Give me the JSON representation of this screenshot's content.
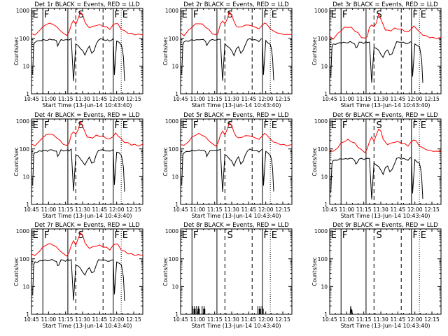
{
  "chart_data": [
    {
      "type": "line",
      "title": "Det 1r BLACK = Events, RED = LLD",
      "xlabel": "Start Time (13-Jun-14 10:43:40)",
      "ylabel": "Counts/sec",
      "has_events": true,
      "events_scale": 1.0,
      "lld_scale": 1.0,
      "spike": false
    },
    {
      "type": "line",
      "title": "Det 2r BLACK = Events, RED = LLD",
      "xlabel": "Start Time (13-Jun-14 10:43:40)",
      "ylabel": "Counts/sec",
      "has_events": true,
      "events_scale": 1.0,
      "lld_scale": 1.0,
      "spike": false
    },
    {
      "type": "line",
      "title": "Det 3r BLACK = Events, RED = LLD",
      "xlabel": "Start Time (13-Jun-14 10:43:40)",
      "ylabel": "Counts/sec",
      "has_events": true,
      "events_scale": 0.8,
      "lld_scale": 0.75,
      "spike": false
    },
    {
      "type": "line",
      "title": "Det 4r BLACK = Events, RED = LLD",
      "xlabel": "Start Time (13-Jun-14 10:43:40)",
      "ylabel": "Counts/sec",
      "has_events": true,
      "events_scale": 1.0,
      "lld_scale": 1.0,
      "spike": false
    },
    {
      "type": "line",
      "title": "Det 5r BLACK = Events, RED = LLD",
      "xlabel": "Start Time (13-Jun-14 10:43:40)",
      "ylabel": "Counts/sec",
      "has_events": true,
      "events_scale": 1.0,
      "lld_scale": 1.0,
      "spike": false
    },
    {
      "type": "line",
      "title": "Det 6r BLACK = Events, RED = LLD",
      "xlabel": "Start Time (13-Jun-14 10:43:40)",
      "ylabel": "Counts/sec",
      "has_events": true,
      "events_scale": 0.5,
      "lld_scale": 0.6,
      "spike": false
    },
    {
      "type": "line",
      "title": "Det 7r BLACK = Events, RED = LLD",
      "xlabel": "Start Time (13-Jun-14 10:43:40)",
      "ylabel": "Counts/sec",
      "has_events": true,
      "events_scale": 1.0,
      "lld_scale": 1.0,
      "spike": false
    },
    {
      "type": "line",
      "title": "Det 8r BLACK = Events, RED = LLD",
      "xlabel": "Start Time (13-Jun-14 10:43:40)",
      "ylabel": "Counts/sec",
      "has_events": false,
      "events_scale": 1.0,
      "lld_scale": 1.0,
      "spike": false
    },
    {
      "type": "line",
      "title": "Det 9r BLACK = Events, RED = LLD",
      "xlabel": "Start Time (13-Jun-14 10:43:40)",
      "ylabel": "Counts/sec",
      "has_events": false,
      "events_scale": 1.0,
      "lld_scale": 1.0,
      "spike": true
    }
  ],
  "shared": {
    "x_ticks": [
      "10:45",
      "11:00",
      "11:15",
      "11:30",
      "11:45",
      "12:00",
      "12:15"
    ],
    "x_tick_minutes": [
      45,
      60,
      75,
      90,
      105,
      120,
      135
    ],
    "x_range_minutes": [
      45,
      143
    ],
    "y_ticks": [
      "1",
      "10",
      "100",
      "1000"
    ],
    "y_tick_values": [
      1,
      10,
      100,
      1000
    ],
    "y_range": [
      1,
      1200
    ],
    "y_scale": "log",
    "region_labels": [
      {
        "text": "E",
        "at": 46
      },
      {
        "text": "F",
        "at": 56
      },
      {
        "text": "S",
        "at": 86
      },
      {
        "text": "F",
        "at": 118
      },
      {
        "text": "E",
        "at": 125
      }
    ],
    "boundaries": [
      {
        "at": 55,
        "style": "solid"
      },
      {
        "at": 77,
        "style": "solid"
      },
      {
        "at": 84,
        "style": "dashed"
      },
      {
        "at": 108,
        "style": "dashed"
      },
      {
        "at": 117,
        "style": "solid"
      },
      {
        "at": 124,
        "style": "dotted"
      }
    ],
    "lld_series": {
      "x": [
        45,
        48,
        52,
        55,
        58,
        61,
        64,
        67,
        70,
        73,
        76,
        78,
        80,
        82,
        84,
        86,
        88,
        90,
        92,
        94,
        96,
        99,
        102,
        105,
        108,
        111,
        114,
        117,
        119,
        121,
        124,
        127,
        130,
        133,
        136,
        139,
        143
      ],
      "y": [
        150,
        130,
        190,
        260,
        320,
        350,
        320,
        260,
        200,
        150,
        130,
        160,
        320,
        430,
        330,
        500,
        900,
        700,
        400,
        280,
        250,
        260,
        300,
        300,
        280,
        250,
        220,
        300,
        360,
        320,
        220,
        180,
        160,
        145,
        140,
        135,
        140
      ]
    },
    "events_series": {
      "x": [
        46,
        47,
        48,
        50,
        52,
        54,
        55,
        57,
        59,
        61,
        63,
        65,
        67,
        68,
        69,
        71,
        73,
        75,
        77,
        78,
        80,
        82,
        84,
        86,
        88,
        90,
        92,
        94,
        96,
        98,
        100,
        102,
        104,
        106,
        108,
        110,
        112,
        114,
        116,
        117,
        118,
        120,
        122,
        124,
        125,
        126,
        127
      ],
      "y": [
        5,
        60,
        75,
        78,
        82,
        85,
        88,
        88,
        86,
        90,
        92,
        88,
        80,
        55,
        62,
        90,
        88,
        85,
        92,
        88,
        95,
        3,
        60,
        55,
        45,
        35,
        25,
        40,
        50,
        30,
        35,
        60,
        90,
        95,
        90,
        88,
        85,
        80,
        92,
        95,
        5,
        80,
        70,
        60,
        40,
        20,
        3
      ]
    },
    "spike_series": {
      "x": [
        63,
        63.5,
        64,
        64.5,
        65
      ],
      "y": [
        1,
        2,
        1,
        1.5,
        1
      ]
    }
  }
}
